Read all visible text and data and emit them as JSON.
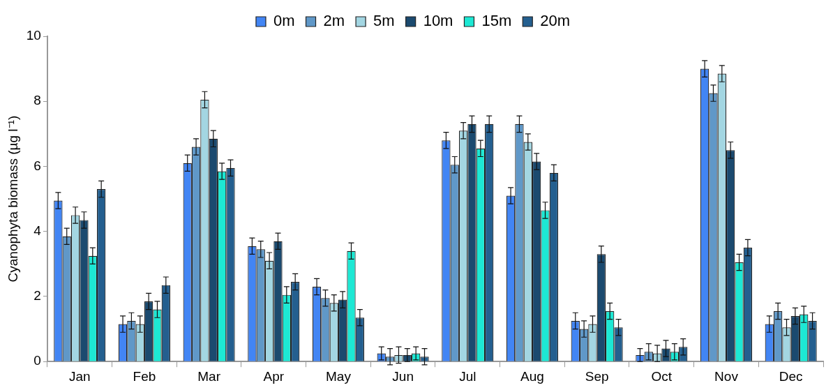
{
  "chart_data": {
    "type": "bar",
    "ylabel": "Cyanophyta biomass (µg l⁻¹)",
    "categories": [
      "Jan",
      "Feb",
      "Mar",
      "Apr",
      "May",
      "Jun",
      "Jul",
      "Aug",
      "Sep",
      "Oct",
      "Nov",
      "Dec"
    ],
    "series": [
      {
        "name": "0m",
        "color": "#4285f4",
        "values": [
          4.95,
          1.15,
          6.1,
          3.55,
          2.3,
          0.25,
          6.8,
          5.1,
          1.25,
          0.2,
          9.0,
          1.15
        ],
        "errors": [
          0.25,
          0.25,
          0.25,
          0.25,
          0.25,
          0.2,
          0.25,
          0.25,
          0.25,
          0.2,
          0.25,
          0.25
        ]
      },
      {
        "name": "2m",
        "color": "#6098c8",
        "values": [
          3.85,
          1.25,
          6.6,
          3.45,
          1.95,
          0.15,
          6.05,
          7.3,
          1.0,
          0.3,
          8.25,
          1.55
        ],
        "errors": [
          0.25,
          0.25,
          0.25,
          0.25,
          0.25,
          0.25,
          0.25,
          0.25,
          0.25,
          0.25,
          0.25,
          0.25
        ]
      },
      {
        "name": "5m",
        "color": "#a3d6e2",
        "values": [
          4.5,
          1.15,
          8.05,
          3.1,
          1.8,
          0.2,
          7.1,
          6.75,
          1.15,
          0.25,
          8.85,
          1.05
        ],
        "errors": [
          0.25,
          0.25,
          0.25,
          0.25,
          0.25,
          0.25,
          0.25,
          0.25,
          0.25,
          0.25,
          0.25,
          0.25
        ]
      },
      {
        "name": "10m",
        "color": "#1b4a6f",
        "values": [
          4.35,
          1.85,
          6.85,
          3.7,
          1.9,
          0.2,
          7.3,
          6.15,
          3.3,
          0.4,
          6.5,
          1.4
        ],
        "errors": [
          0.25,
          0.25,
          0.25,
          0.25,
          0.25,
          0.2,
          0.25,
          0.25,
          0.25,
          0.25,
          0.25,
          0.25
        ]
      },
      {
        "name": "15m",
        "color": "#1de8d4",
        "values": [
          3.25,
          1.6,
          5.85,
          2.05,
          3.4,
          0.25,
          6.55,
          4.65,
          1.55,
          0.3,
          3.05,
          1.45
        ],
        "errors": [
          0.25,
          0.25,
          0.25,
          0.25,
          0.25,
          0.2,
          0.25,
          0.25,
          0.25,
          0.25,
          0.25,
          0.25
        ]
      },
      {
        "name": "20m",
        "color": "#245f8f",
        "values": [
          5.3,
          2.35,
          5.95,
          2.45,
          1.35,
          0.15,
          7.3,
          5.8,
          1.05,
          0.45,
          3.5,
          1.25
        ],
        "errors": [
          0.25,
          0.25,
          0.25,
          0.25,
          0.25,
          0.25,
          0.25,
          0.25,
          0.25,
          0.25,
          0.25,
          0.25
        ]
      }
    ],
    "ylim": [
      0,
      10
    ],
    "yticks": [
      0,
      2,
      4,
      6,
      8,
      10
    ],
    "grid": false,
    "legend": "top"
  }
}
